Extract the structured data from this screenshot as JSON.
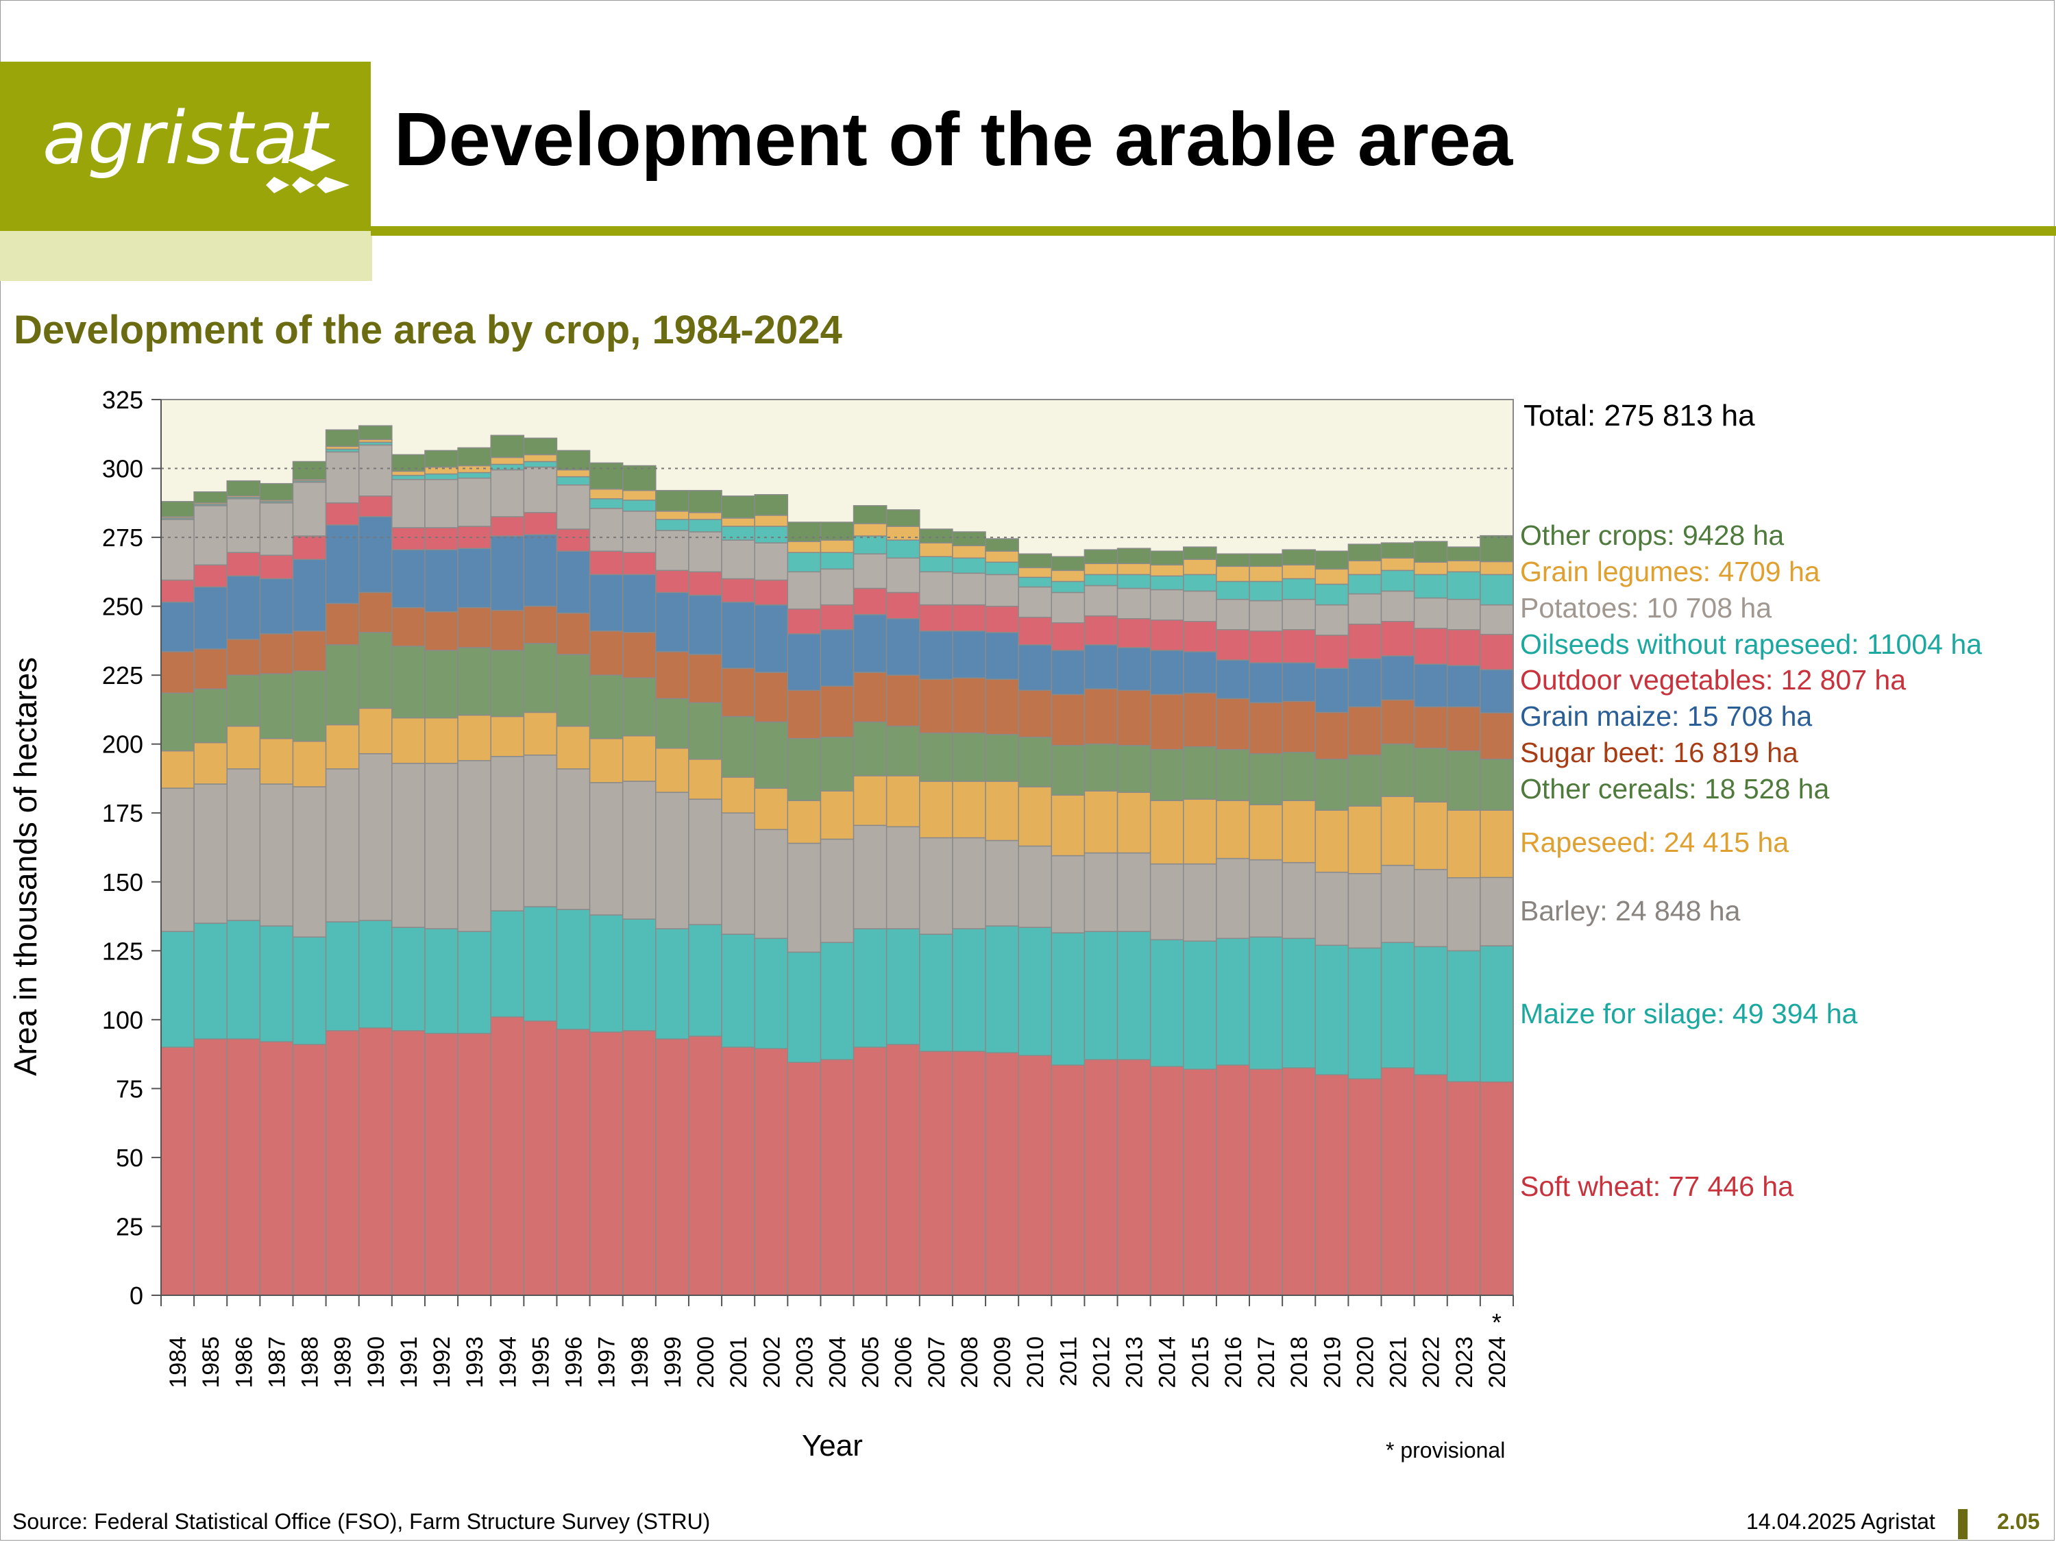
{
  "header": {
    "logo_text": "agristat",
    "title": "Development of the arable area",
    "brand_color": "#9aa50a"
  },
  "subtitle": "Development of the area by crop, 1984-2024",
  "axes": {
    "ylabel": "Area in thousands of hectares",
    "xlabel": "Year"
  },
  "total_label": "Total: 275 813 ha",
  "note": "* provisional",
  "provisional_marker": "*",
  "footer": {
    "source": "Source: Federal Statistical Office (FSO), Farm Structure Survey (STRU)",
    "date": "14.04.2025 Agristat",
    "page": "2.05"
  },
  "legend": [
    {
      "label": "Other crops: 9428 ha",
      "color": "#4e7a3c"
    },
    {
      "label": "Grain legumes: 4709 ha",
      "color": "#e0a030"
    },
    {
      "label": "Potatoes: 10 708 ha",
      "color": "#a09890"
    },
    {
      "label": "Oilseeds without rapeseed: 11004 ha",
      "color": "#1aa8a0"
    },
    {
      "label": "Outdoor vegetables: 12 807 ha",
      "color": "#c8323c"
    },
    {
      "label": "Grain maize: 15 708 ha",
      "color": "#2a5e96"
    },
    {
      "label": "Sugar beet: 16 819 ha",
      "color": "#a83c14"
    },
    {
      "label": "Other cereals: 18 528 ha",
      "color": "#4e7a3c"
    },
    {
      "label": "Rapeseed: 24 415 ha",
      "color": "#e0a030"
    },
    {
      "label": "Barley: 24 848 ha",
      "color": "#8a8480"
    },
    {
      "label": "Maize for silage: 49 394 ha",
      "color": "#1aa8a0"
    },
    {
      "label": "Soft wheat: 77 446 ha",
      "color": "#c8323c"
    }
  ],
  "chart_data": {
    "type": "bar",
    "stacked": true,
    "title": "Development of the area by crop, 1984-2024",
    "xlabel": "Year",
    "ylabel": "Area in thousands of hectares",
    "ylim": [
      0,
      325
    ],
    "yticks": [
      0,
      25,
      50,
      75,
      100,
      125,
      150,
      175,
      200,
      225,
      250,
      275,
      300,
      325
    ],
    "grid": "dotted at 275 and 300",
    "categories": [
      "1984",
      "1985",
      "1986",
      "1987",
      "1988",
      "1989",
      "1990",
      "1991",
      "1992",
      "1993",
      "1994",
      "1995",
      "1996",
      "1997",
      "1998",
      "1999",
      "2000",
      "2001",
      "2002",
      "2003",
      "2004",
      "2005",
      "2006",
      "2007",
      "2008",
      "2009",
      "2010",
      "2011",
      "2012",
      "2013",
      "2014",
      "2015",
      "2016",
      "2017",
      "2018",
      "2019",
      "2020",
      "2021",
      "2022",
      "2023",
      "2024"
    ],
    "series": [
      {
        "name": "Soft wheat",
        "color": "#d4706f",
        "values": [
          90,
          93,
          93,
          92,
          91,
          96,
          97,
          96,
          95,
          95,
          101,
          99.5,
          96.5,
          95.5,
          96,
          93,
          94,
          90,
          89.5,
          84.5,
          85.5,
          90,
          91,
          88.5,
          88.5,
          88,
          87,
          83.5,
          85.5,
          85.5,
          83,
          82,
          83.5,
          82,
          82.5,
          80,
          78.5,
          82.5,
          80,
          77.5,
          77.4
        ]
      },
      {
        "name": "Maize for silage",
        "color": "#52bdb6",
        "values": [
          42,
          42,
          43,
          42,
          39,
          39.5,
          39,
          37.5,
          38,
          37,
          38.5,
          41.5,
          43.5,
          42.5,
          40.5,
          40,
          40.5,
          41,
          40,
          40,
          42.5,
          43,
          42,
          42.5,
          44.5,
          46,
          46.5,
          48,
          46.5,
          46.5,
          46,
          46.5,
          46,
          48,
          47,
          47,
          47.5,
          45.5,
          46.5,
          47.5,
          49.4
        ]
      },
      {
        "name": "Barley",
        "color": "#b1aba5",
        "values": [
          52,
          50.5,
          55,
          51.5,
          54.5,
          55.5,
          60.5,
          59.5,
          60,
          62,
          56,
          55,
          51,
          48,
          50,
          49.5,
          45.5,
          44,
          39.5,
          39.5,
          37.5,
          37.5,
          37,
          35,
          33,
          31,
          29.5,
          28,
          28.5,
          28.5,
          27.5,
          28,
          29,
          28,
          27.5,
          26.5,
          27,
          28,
          28,
          26.5,
          24.8
        ]
      },
      {
        "name": "Rapeseed",
        "color": "#e5b05a",
        "values": [
          13.5,
          15,
          15.5,
          16.5,
          16.5,
          16,
          16.5,
          16.5,
          16.5,
          16.5,
          14.5,
          15.5,
          15.5,
          16,
          16.5,
          16,
          14.5,
          13,
          15,
          15.5,
          17.5,
          18,
          18.5,
          20.5,
          20.5,
          21.5,
          21.5,
          22,
          22.5,
          22,
          23,
          23.5,
          21,
          20,
          22.5,
          22.5,
          24.5,
          25,
          24.5,
          24.5,
          24.4
        ]
      },
      {
        "name": "Other cereals",
        "color": "#7a9c6d",
        "values": [
          21,
          19.5,
          18.5,
          23.5,
          25.5,
          29,
          27.5,
          26,
          24.5,
          24.5,
          24,
          25,
          26,
          23,
          21,
          18,
          20.5,
          22,
          24,
          22.5,
          19.5,
          19.5,
          18,
          17.5,
          17.5,
          17,
          18,
          18,
          17,
          17,
          18.5,
          19,
          18.5,
          18.5,
          17.5,
          18.5,
          18.5,
          19,
          19.5,
          21.5,
          18.5
        ]
      },
      {
        "name": "Sugar beet",
        "color": "#c0744c",
        "values": [
          15,
          14.5,
          13,
          14.5,
          14.5,
          15,
          14.5,
          14,
          14,
          14.5,
          14.5,
          13.5,
          15,
          16,
          16.5,
          17,
          17.5,
          17.5,
          18,
          17.5,
          18.5,
          18,
          18.5,
          19.5,
          20,
          20,
          17,
          18.5,
          20,
          20,
          20,
          19.5,
          18.5,
          18.5,
          18.5,
          17,
          17.5,
          16,
          15,
          16,
          16.8
        ]
      },
      {
        "name": "Grain maize",
        "color": "#5a88b0",
        "values": [
          18,
          22.5,
          23,
          20,
          26,
          28.5,
          27.5,
          21,
          22.5,
          21.5,
          27,
          26,
          22.5,
          20.5,
          21,
          21.5,
          21.5,
          24,
          24.5,
          20.5,
          20.5,
          21,
          20.5,
          17.5,
          17,
          17,
          16.5,
          16,
          16,
          15.5,
          16,
          15,
          14,
          14.5,
          14,
          16,
          17.5,
          16,
          15.5,
          15,
          15.7
        ]
      },
      {
        "name": "Outdoor vegetables",
        "color": "#d96671",
        "values": [
          8,
          8,
          8.5,
          8.5,
          8.5,
          8,
          7.5,
          8,
          8,
          8,
          7,
          8,
          8,
          8.5,
          8,
          8,
          8.5,
          8.5,
          9,
          9,
          9,
          9.5,
          9.5,
          9.5,
          9.5,
          9.5,
          10,
          10,
          10.5,
          10.5,
          11,
          11,
          11,
          11.5,
          12,
          12,
          12.5,
          12.5,
          13,
          13,
          12.8
        ]
      },
      {
        "name": "Potatoes",
        "color": "#b4aea8",
        "values": [
          22,
          21.5,
          19.5,
          19,
          19.5,
          18.5,
          18.5,
          17.5,
          17.5,
          17.5,
          17,
          16.5,
          16,
          15.5,
          15,
          14.5,
          14.5,
          14,
          13.5,
          13.5,
          13,
          12.5,
          12.5,
          12,
          11.5,
          11.5,
          11,
          11,
          11,
          11,
          11,
          11,
          11,
          11,
          11,
          11,
          11,
          11,
          11,
          11,
          10.7
        ]
      },
      {
        "name": "Oilseeds without rapeseed",
        "color": "#59c0b8",
        "values": [
          0.5,
          0.5,
          0.5,
          0.5,
          0.5,
          1,
          1,
          1.5,
          2,
          2,
          2,
          2,
          3,
          3.5,
          4,
          4,
          4.5,
          5,
          6,
          7,
          6,
          6.5,
          6.5,
          5.5,
          5.5,
          4.5,
          3.5,
          4,
          4,
          5,
          5,
          6,
          6.5,
          7,
          7.5,
          7.5,
          7,
          7.5,
          8.5,
          10,
          11
        ]
      },
      {
        "name": "Grain legumes",
        "color": "#e8b561",
        "values": [
          0.5,
          0.5,
          0.5,
          0.5,
          0.5,
          1,
          1,
          1.5,
          2.5,
          2.5,
          2.5,
          2.5,
          2.5,
          3.5,
          3.5,
          3,
          2.5,
          3,
          4,
          4,
          4.5,
          4.5,
          5,
          5,
          4.5,
          4,
          3.5,
          4,
          4,
          4,
          4,
          5.5,
          5.5,
          5.5,
          5,
          5.5,
          5,
          4.5,
          4.5,
          4,
          4.7
        ]
      },
      {
        "name": "Other crops",
        "color": "#719460",
        "values": [
          5.5,
          4,
          5.5,
          6,
          6.5,
          6,
          5,
          6,
          6,
          6.5,
          8,
          6,
          7,
          9.5,
          9,
          7.5,
          8,
          8,
          7.5,
          7,
          6.5,
          6.5,
          6,
          5,
          5,
          4.5,
          5,
          5,
          5,
          5.5,
          5,
          4.5,
          4.5,
          4.5,
          5.5,
          6.5,
          6,
          5.5,
          7.5,
          5,
          9.4
        ]
      }
    ],
    "totals_label": "Total: 275 813 ha"
  }
}
